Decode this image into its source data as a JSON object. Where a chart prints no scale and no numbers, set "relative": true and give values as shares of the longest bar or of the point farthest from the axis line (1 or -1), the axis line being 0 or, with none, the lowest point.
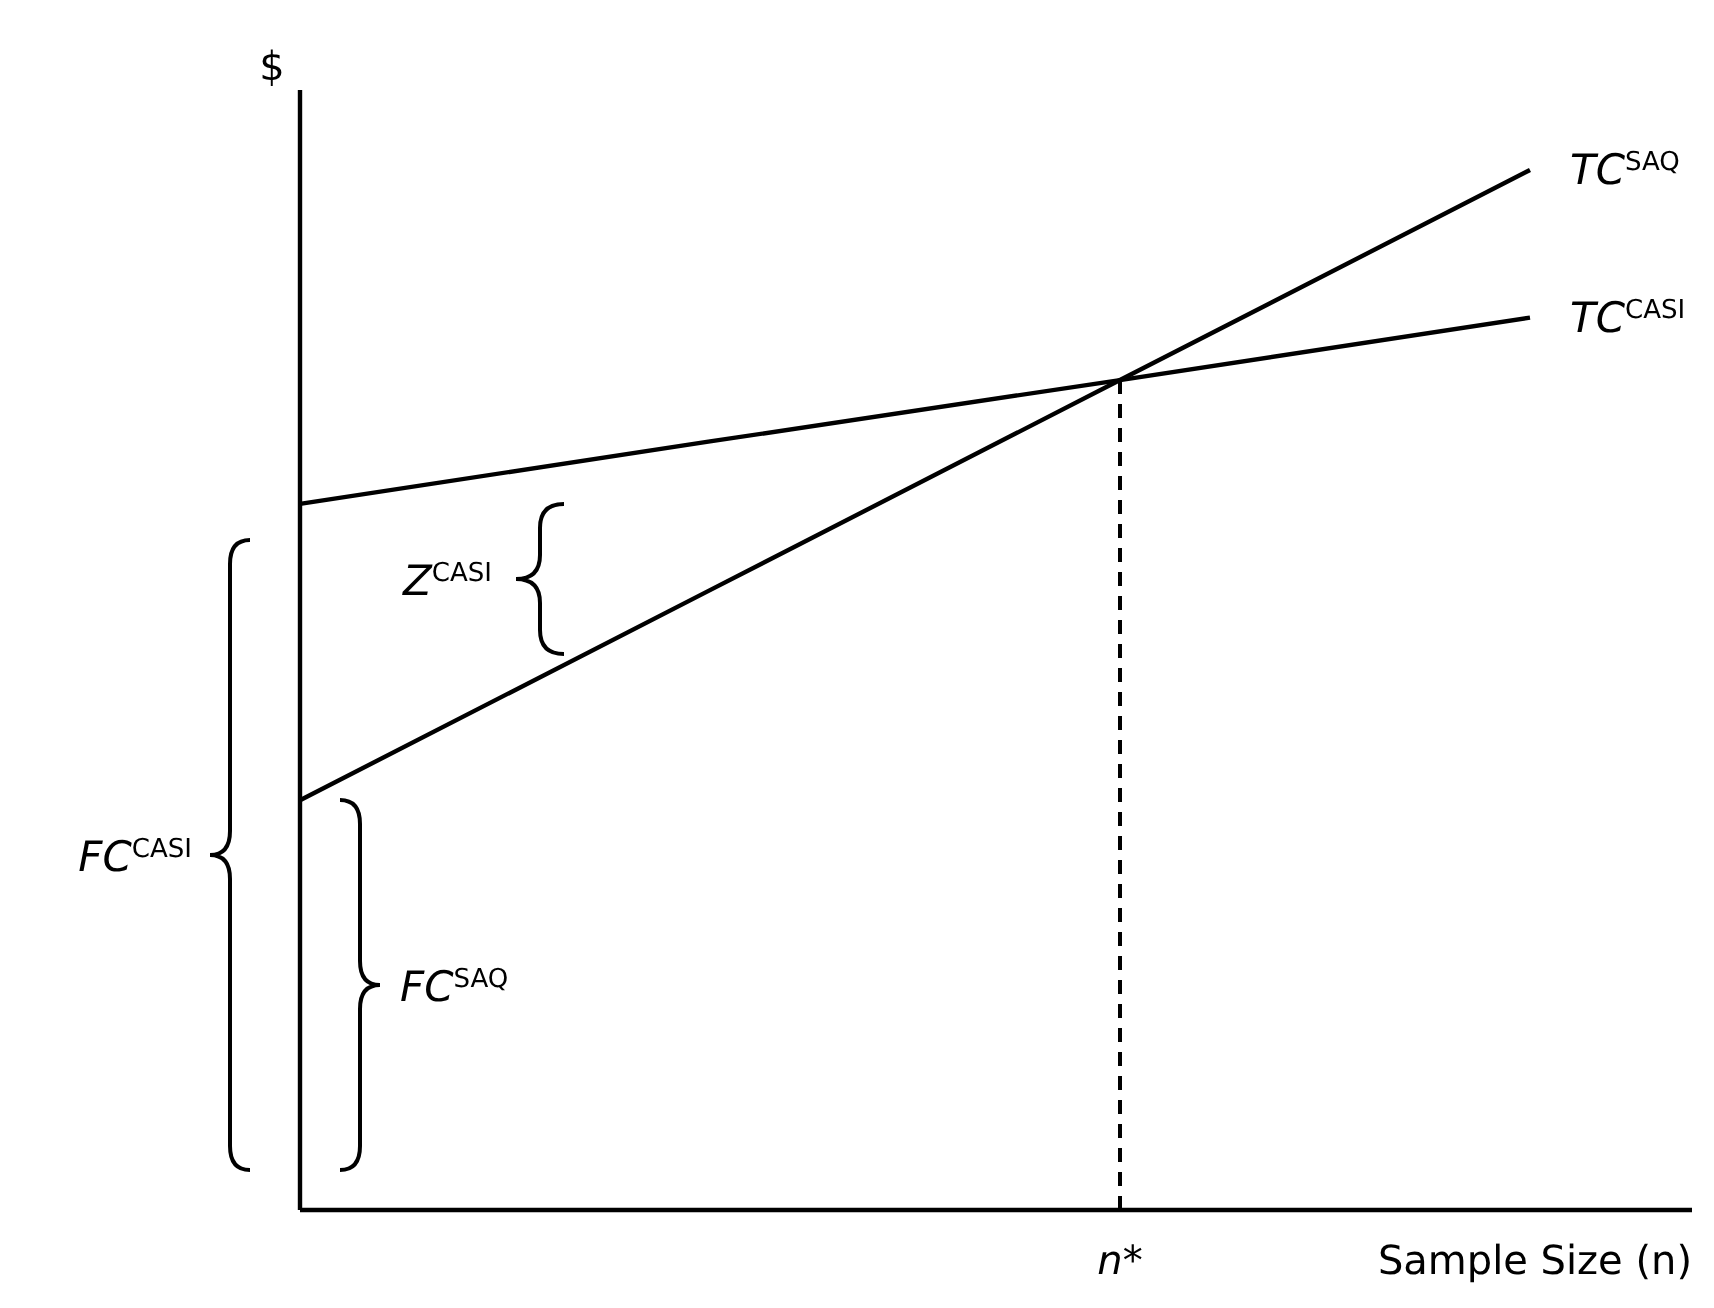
{
  "chart_data": {
    "type": "line",
    "relative": true,
    "categories": [
      null,
      null,
      null,
      null
    ],
    "ylabel": "$",
    "xlabel": "Sample Size (n)",
    "legend": false,
    "grid": false,
    "marker": "none",
    "line_style": "solid",
    "series": [
      {
        "name": "TC$^{SAQ}$",
        "color": "#000000",
        "values": [
          0.394,
          0.596,
          0.798,
          1.0
        ]
      },
      {
        "name": "TC$^{CASI}$",
        "color": "#000000",
        "values": [
          0.679,
          0.739,
          0.798,
          0.858
        ]
      }
    ],
    "ref_lines": [
      {
        "axis": "x",
        "value": null,
        "label": "n*",
        "line_style": "dashed",
        "color": "#000000"
      }
    ],
    "annotations": [
      "Z$^{CASI}$",
      "FC$^{CASI}$",
      "FC$^{SAQ}$"
    ]
  }
}
